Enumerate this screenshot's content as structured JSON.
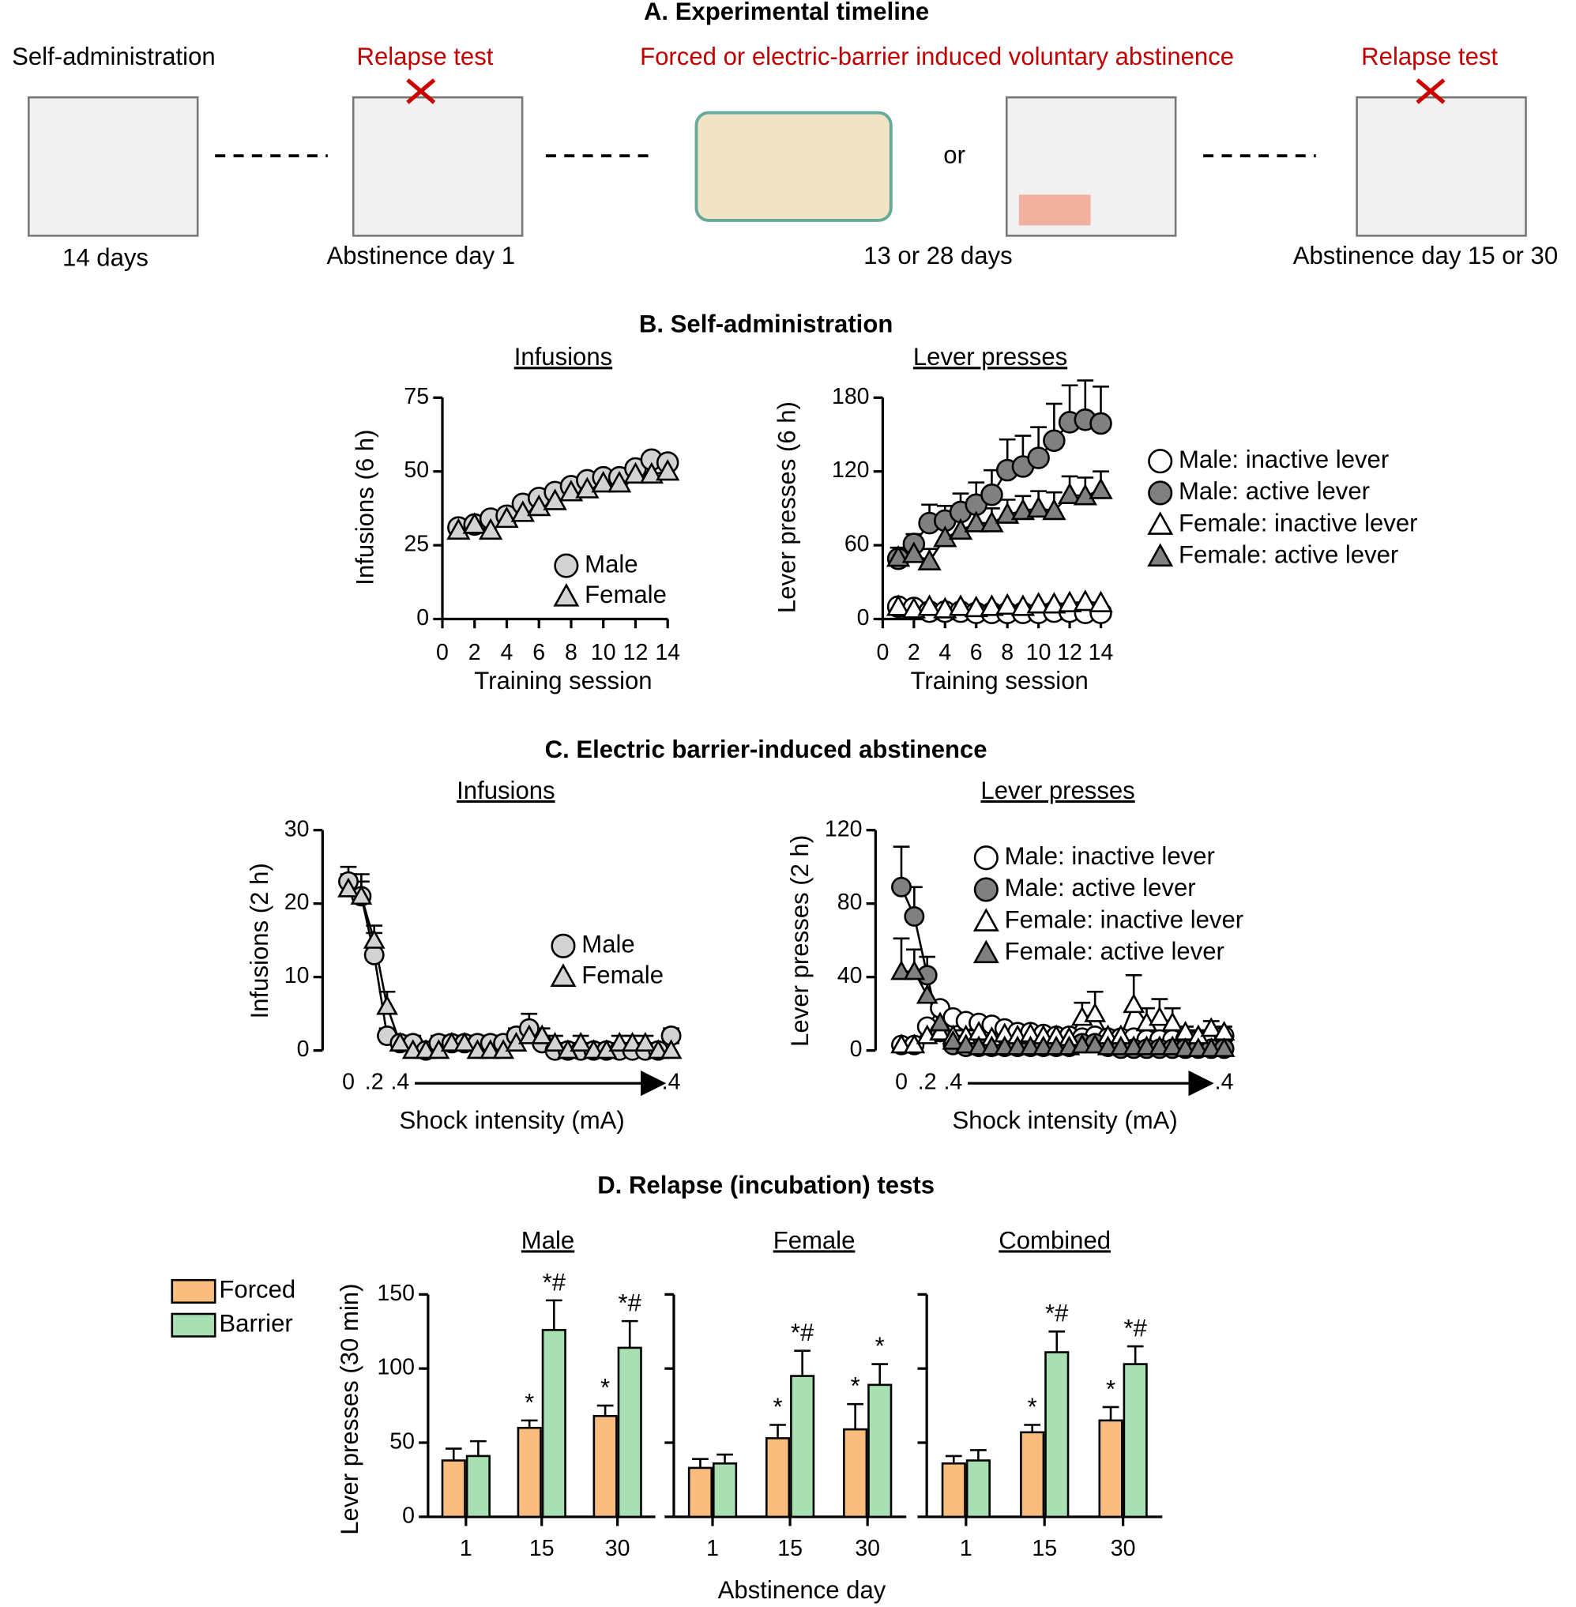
{
  "sections": [
    "A. Experimental timeline",
    "B. Self-administration",
    "C. Electric barrier-induced abstinence",
    "D. Relapse (incubation) tests"
  ],
  "timeline": {
    "stages": [
      {
        "label": "Self-administration",
        "duration": "14 days"
      },
      {
        "label": "Relapse test",
        "duration": "Abstinence day 1"
      },
      {
        "label": "Forced or electric-barrier induced voluntary abstinence",
        "duration": "13 or 28 days",
        "connector": "or"
      },
      {
        "label": "Relapse test",
        "duration": "Abstinence day 15 or 30"
      }
    ]
  },
  "chart_data": [
    {
      "type": "line",
      "title": "Infusions",
      "ylabel": "Infusions (6 h)",
      "xlabel": "Training session",
      "x": [
        1,
        2,
        3,
        4,
        5,
        6,
        7,
        8,
        9,
        10,
        11,
        12,
        13,
        14
      ],
      "xlim": [
        0,
        14
      ],
      "xticks": [
        0,
        2,
        4,
        6,
        8,
        10,
        12,
        14
      ],
      "ylim": [
        0,
        75
      ],
      "yticks": [
        0,
        25,
        50,
        75
      ],
      "x_axis_line": true,
      "series": [
        {
          "name": "Male",
          "marker": "circle",
          "color": "#d3d3d3",
          "values": [
            31,
            32,
            34,
            35,
            39,
            41,
            43,
            45,
            47,
            48,
            48,
            51,
            54,
            53
          ]
        },
        {
          "name": "Female",
          "marker": "triangle",
          "color": "#d3d3d3",
          "values": [
            30,
            32,
            30,
            34,
            36,
            38,
            40,
            43,
            44,
            46,
            46,
            49,
            49,
            50
          ]
        }
      ]
    },
    {
      "type": "line",
      "title": "Lever presses",
      "ylabel": "Lever presses (6 h)",
      "xlabel": "Training session",
      "x": [
        1,
        2,
        3,
        4,
        5,
        6,
        7,
        8,
        9,
        10,
        11,
        12,
        13,
        14
      ],
      "xlim": [
        0,
        14
      ],
      "xticks": [
        0,
        2,
        4,
        6,
        8,
        10,
        12,
        14
      ],
      "ylim": [
        0,
        180
      ],
      "yticks": [
        0,
        60,
        120,
        180
      ],
      "x_axis_line": true,
      "series": [
        {
          "name": "Male: inactive lever",
          "marker": "circle",
          "color": "#ffffff",
          "values": [
            10,
            9,
            6,
            6,
            6,
            5,
            5,
            5,
            5,
            5,
            6,
            6,
            5,
            5
          ]
        },
        {
          "name": "Male: active lever",
          "marker": "circle",
          "color": "#808080",
          "values": [
            49,
            61,
            78,
            80,
            87,
            93,
            101,
            121,
            124,
            131,
            145,
            160,
            162,
            159
          ],
          "errors": [
            5,
            8,
            15,
            12,
            15,
            18,
            20,
            25,
            25,
            25,
            30,
            30,
            32,
            30
          ]
        },
        {
          "name": "Female: inactive lever",
          "marker": "triangle",
          "color": "#ffffff",
          "values": [
            10,
            8,
            10,
            8,
            10,
            9,
            10,
            11,
            10,
            12,
            12,
            13,
            14,
            13
          ]
        },
        {
          "name": "Female: active lever",
          "marker": "triangle",
          "color": "#808080",
          "values": [
            50,
            53,
            47,
            66,
            72,
            78,
            78,
            85,
            88,
            90,
            88,
            101,
            100,
            105
          ],
          "errors": [
            8,
            8,
            10,
            10,
            10,
            12,
            12,
            12,
            12,
            14,
            15,
            15,
            15,
            15
          ]
        }
      ]
    },
    {
      "type": "line",
      "title": "Infusions",
      "ylabel": "Infusions (2 h)",
      "xlabel": "Shock intensity (mA)",
      "x": [
        1,
        2,
        3,
        4,
        5,
        6,
        7,
        8,
        9,
        10,
        11,
        12,
        13,
        14,
        15,
        16,
        17,
        18,
        19,
        20,
        21,
        22,
        23,
        24,
        25,
        26
      ],
      "xlim": [
        -1,
        27
      ],
      "xticks": [
        {
          "value": 1,
          "label": "0"
        },
        {
          "value": 3,
          "label": ".2"
        },
        {
          "value": 5,
          "label": ".4"
        },
        {
          "value": 26,
          "label": ".4"
        }
      ],
      "ylim": [
        0,
        30
      ],
      "yticks": [
        0,
        10,
        20,
        30
      ],
      "x_axis_line": false,
      "series": [
        {
          "name": "Male",
          "marker": "circle",
          "color": "#d3d3d3",
          "values": [
            23,
            21,
            13,
            2,
            1,
            1,
            0,
            1,
            1,
            1,
            1,
            1,
            1,
            2,
            3,
            1,
            0,
            0,
            0,
            0,
            0,
            0,
            0,
            0,
            0,
            2
          ],
          "errors": [
            2,
            3,
            3,
            1,
            1,
            1,
            1,
            1,
            1,
            1,
            1,
            1,
            1,
            1,
            2,
            1,
            1,
            1,
            1,
            1,
            1,
            1,
            1,
            1,
            1,
            1
          ]
        },
        {
          "name": "Female",
          "marker": "triangle",
          "color": "#d3d3d3",
          "values": [
            22,
            21,
            15,
            6,
            1,
            0,
            0,
            0,
            1,
            1,
            0,
            0,
            0,
            1,
            2,
            2,
            1,
            0,
            1,
            0,
            0,
            1,
            1,
            1,
            0,
            0
          ],
          "errors": [
            2,
            2,
            2,
            2,
            1,
            1,
            1,
            1,
            1,
            1,
            1,
            1,
            1,
            1,
            1,
            1,
            1,
            1,
            1,
            1,
            1,
            1,
            1,
            1,
            1,
            1
          ]
        }
      ]
    },
    {
      "type": "line",
      "title": "Lever presses",
      "ylabel": "Lever presses (2 h)",
      "xlabel": "Shock intensity (mA)",
      "x": [
        1,
        2,
        3,
        4,
        5,
        6,
        7,
        8,
        9,
        10,
        11,
        12,
        13,
        14,
        15,
        16,
        17,
        18,
        19,
        20,
        21,
        22,
        23,
        24,
        25,
        26
      ],
      "xlim": [
        -1,
        27
      ],
      "xticks": [
        {
          "value": 1,
          "label": "0"
        },
        {
          "value": 3,
          "label": ".2"
        },
        {
          "value": 5,
          "label": ".4"
        },
        {
          "value": 26,
          "label": ".4"
        }
      ],
      "ylim": [
        0,
        120
      ],
      "yticks": [
        0,
        40,
        80,
        120
      ],
      "x_axis_line": false,
      "series": [
        {
          "name": "Male: inactive lever",
          "marker": "circle",
          "color": "#ffffff",
          "values": [
            3,
            3,
            13,
            23,
            18,
            16,
            15,
            14,
            12,
            10,
            10,
            9,
            8,
            8,
            7,
            8,
            7,
            7,
            7,
            6,
            6,
            6,
            6,
            6,
            6,
            8
          ]
        },
        {
          "name": "Male: active lever",
          "marker": "circle",
          "color": "#808080",
          "values": [
            89,
            73,
            41,
            10,
            3,
            2,
            2,
            2,
            2,
            2,
            2,
            2,
            2,
            2,
            4,
            4,
            2,
            1,
            1,
            1,
            1,
            1,
            1,
            1,
            1,
            1
          ],
          "errors": [
            22,
            16,
            10,
            4,
            1,
            1,
            1,
            1,
            1,
            1,
            1,
            1,
            1,
            1,
            2,
            2,
            1,
            1,
            1,
            1,
            1,
            1,
            1,
            1,
            1,
            1
          ]
        },
        {
          "name": "Female: inactive lever",
          "marker": "triangle",
          "color": "#ffffff",
          "values": [
            3,
            3,
            8,
            10,
            8,
            8,
            10,
            7,
            9,
            8,
            9,
            8,
            8,
            7,
            18,
            20,
            8,
            8,
            25,
            15,
            18,
            15,
            10,
            8,
            12,
            10
          ],
          "errors": [
            1,
            1,
            3,
            3,
            3,
            3,
            3,
            3,
            3,
            3,
            3,
            3,
            3,
            3,
            8,
            12,
            3,
            3,
            16,
            8,
            10,
            8,
            3,
            3,
            4,
            3
          ]
        },
        {
          "name": "Female: active lever",
          "marker": "triangle",
          "color": "#808080",
          "values": [
            43,
            43,
            30,
            15,
            5,
            3,
            2,
            2,
            2,
            2,
            2,
            2,
            2,
            2,
            3,
            3,
            2,
            2,
            2,
            2,
            2,
            2,
            1,
            1,
            1,
            1
          ],
          "errors": [
            18,
            12,
            8,
            5,
            2,
            1,
            1,
            1,
            1,
            1,
            1,
            1,
            1,
            1,
            1,
            1,
            1,
            1,
            1,
            1,
            1,
            1,
            1,
            1,
            1,
            1
          ]
        }
      ]
    },
    {
      "type": "bar",
      "title": "Male",
      "ylabel": "Lever presses (30 min)",
      "xlabel": "Abstinence day",
      "categories": [
        "1",
        "15",
        "30"
      ],
      "ylim": [
        0,
        150
      ],
      "yticks": [
        0,
        50,
        100,
        150
      ],
      "show_ytick_labels": true,
      "series": [
        {
          "name": "Forced",
          "color": "#fbbd7e",
          "values": [
            38,
            60,
            68
          ],
          "errors": [
            8,
            5,
            7
          ],
          "annotations": [
            null,
            "*",
            "*"
          ]
        },
        {
          "name": "Barrier",
          "color": "#a9e0b3",
          "values": [
            41,
            126,
            114
          ],
          "errors": [
            10,
            20,
            18
          ],
          "annotations": [
            null,
            "*#",
            "*#"
          ]
        }
      ]
    },
    {
      "type": "bar",
      "title": "Female",
      "categories": [
        "1",
        "15",
        "30"
      ],
      "ylim": [
        0,
        150
      ],
      "yticks": [
        0,
        50,
        100,
        150
      ],
      "show_ytick_labels": false,
      "series": [
        {
          "name": "Forced",
          "color": "#fbbd7e",
          "values": [
            33,
            53,
            59
          ],
          "errors": [
            6,
            9,
            17
          ],
          "annotations": [
            null,
            "*",
            "*"
          ]
        },
        {
          "name": "Barrier",
          "color": "#a9e0b3",
          "values": [
            36,
            95,
            89
          ],
          "errors": [
            6,
            17,
            14
          ],
          "annotations": [
            null,
            "*#",
            "*"
          ]
        }
      ]
    },
    {
      "type": "bar",
      "title": "Combined",
      "categories": [
        "1",
        "15",
        "30"
      ],
      "ylim": [
        0,
        150
      ],
      "yticks": [
        0,
        50,
        100,
        150
      ],
      "show_ytick_labels": false,
      "series": [
        {
          "name": "Forced",
          "color": "#fbbd7e",
          "values": [
            36,
            57,
            65
          ],
          "errors": [
            5,
            5,
            9
          ],
          "annotations": [
            null,
            "*",
            "*"
          ]
        },
        {
          "name": "Barrier",
          "color": "#a9e0b3",
          "values": [
            38,
            111,
            103
          ],
          "errors": [
            7,
            14,
            12
          ],
          "annotations": [
            null,
            "*#",
            "*#"
          ]
        }
      ]
    }
  ]
}
